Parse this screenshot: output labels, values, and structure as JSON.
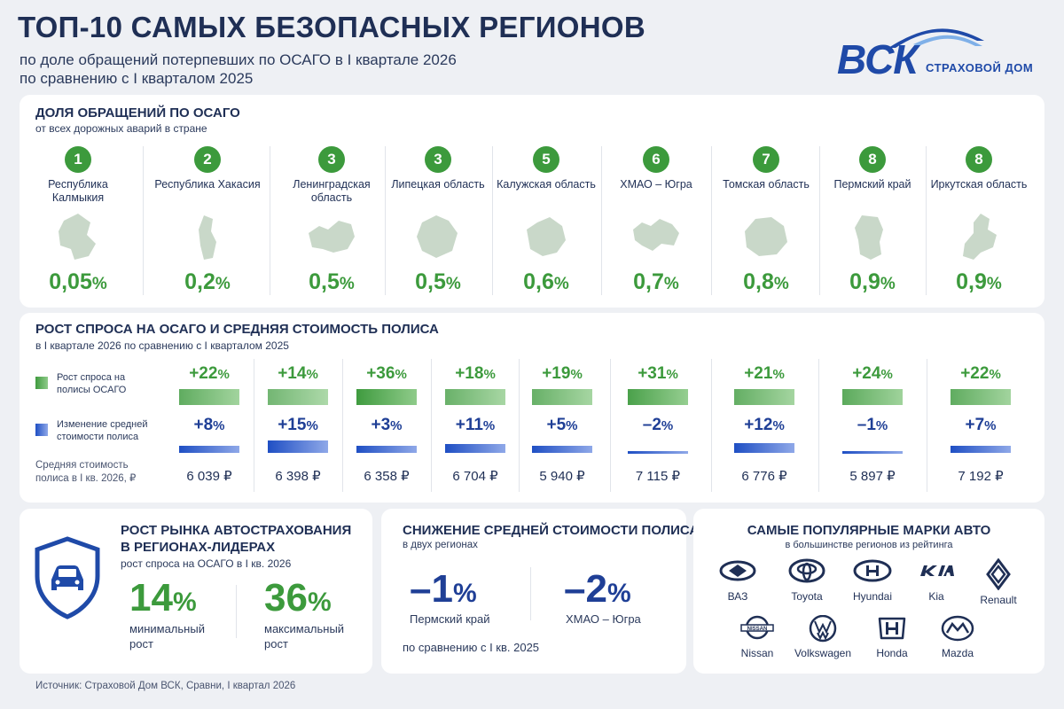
{
  "header": {
    "title": "ТОП-10 САМЫХ БЕЗОПАСНЫХ РЕГИОНОВ",
    "subtitle1": "по доле обращений потерпевших по ОСАГО в I квартале 2026",
    "subtitle2": "по сравнению с I кварталом 2025"
  },
  "logo": {
    "name": "ВСК",
    "tagline": "СТРАХОВОЙ ДОМ"
  },
  "share": {
    "title": "ДОЛЯ ОБРАЩЕНИЙ ПО ОСАГО",
    "subtitle": "от всех дорожных аварий в стране",
    "unit": "%",
    "regions": [
      {
        "rank": "1",
        "name": "Республика Калмыкия",
        "value": "0,05"
      },
      {
        "rank": "2",
        "name": "Республика Хакасия",
        "value": "0,2"
      },
      {
        "rank": "3",
        "name": "Ленинградская область",
        "value": "0,5"
      },
      {
        "rank": "3",
        "name": "Липецкая область",
        "value": "0,5"
      },
      {
        "rank": "5",
        "name": "Калужская область",
        "value": "0,6"
      },
      {
        "rank": "6",
        "name": "ХМАО – Югра",
        "value": "0,7"
      },
      {
        "rank": "7",
        "name": "Томская область",
        "value": "0,8"
      },
      {
        "rank": "8",
        "name": "Пермский край",
        "value": "0,9"
      },
      {
        "rank": "8",
        "name": "Иркутская область",
        "value": "0,9"
      }
    ]
  },
  "growth": {
    "title": "РОСТ СПРОСА НА ОСАГО И СРЕДНЯЯ СТОИМОСТЬ ПОЛИСА",
    "subtitle": "в I квартале 2026 по сравнению с I кварталом 2025",
    "legend_demand": "Рост спроса на полисы ОСАГО",
    "legend_price": "Изменение средней стоимости полиса",
    "avg_label": "Средняя стоимость полиса в I кв. 2026, ₽",
    "unit": "%",
    "colors": {
      "demand": "#3c9a3c",
      "price": "#1f3f96"
    },
    "columns": [
      {
        "demand": "+22",
        "demand_value": 22,
        "price": "+8",
        "price_value": 8,
        "avg": "6 039 ₽"
      },
      {
        "demand": "+14",
        "demand_value": 14,
        "price": "+15",
        "price_value": 15,
        "avg": "6 398 ₽"
      },
      {
        "demand": "+36",
        "demand_value": 36,
        "price": "+3",
        "price_value": 3,
        "avg": "6 358 ₽"
      },
      {
        "demand": "+18",
        "demand_value": 18,
        "price": "+11",
        "price_value": 11,
        "avg": "6 704 ₽"
      },
      {
        "demand": "+19",
        "demand_value": 19,
        "price": "+5",
        "price_value": 5,
        "avg": "5 940 ₽"
      },
      {
        "demand": "+31",
        "demand_value": 31,
        "price": "–2",
        "price_value": -2,
        "avg": "7 115 ₽"
      },
      {
        "demand": "+21",
        "demand_value": 21,
        "price": "+12",
        "price_value": 12,
        "avg": "6 776 ₽"
      },
      {
        "demand": "+24",
        "demand_value": 24,
        "price": "–1",
        "price_value": -1,
        "avg": "5 897 ₽"
      },
      {
        "demand": "+22",
        "demand_value": 22,
        "price": "+7",
        "price_value": 7,
        "avg": "7 192 ₽"
      }
    ]
  },
  "market": {
    "title_line1": "РОСТ РЫНКА АВТОСТРАХОВАНИЯ",
    "title_line2": "В РЕГИОНАХ-ЛИДЕРАХ",
    "subtitle": "рост спроса на ОСАГО в I кв. 2026",
    "min_value": "14",
    "min_label_1": "минимальный",
    "min_label_2": "рост",
    "max_value": "36",
    "max_label_1": "максимальный",
    "max_label_2": "рост",
    "unit": "%"
  },
  "decrease": {
    "title": "СНИЖЕНИЕ СРЕДНЕЙ СТОИМОСТИ ПОЛИСА",
    "subtitle": "в двух регионах",
    "v1": "–1",
    "r1": "Пермский край",
    "v2": "–2",
    "r2": "ХМАО – Югра",
    "unit": "%",
    "note": "по сравнению с I кв. 2025"
  },
  "brands": {
    "title": "САМЫЕ ПОПУЛЯРНЫЕ МАРКИ АВТО",
    "subtitle": "в большинстве регионов из рейтинга",
    "list": [
      "ВАЗ",
      "Toyota",
      "Hyundai",
      "Kia",
      "Renault",
      "Nissan",
      "Volkswagen",
      "Honda",
      "Mazda"
    ]
  },
  "source": "Источник: Страховой Дом ВСК, Сравни, I квартал 2026"
}
